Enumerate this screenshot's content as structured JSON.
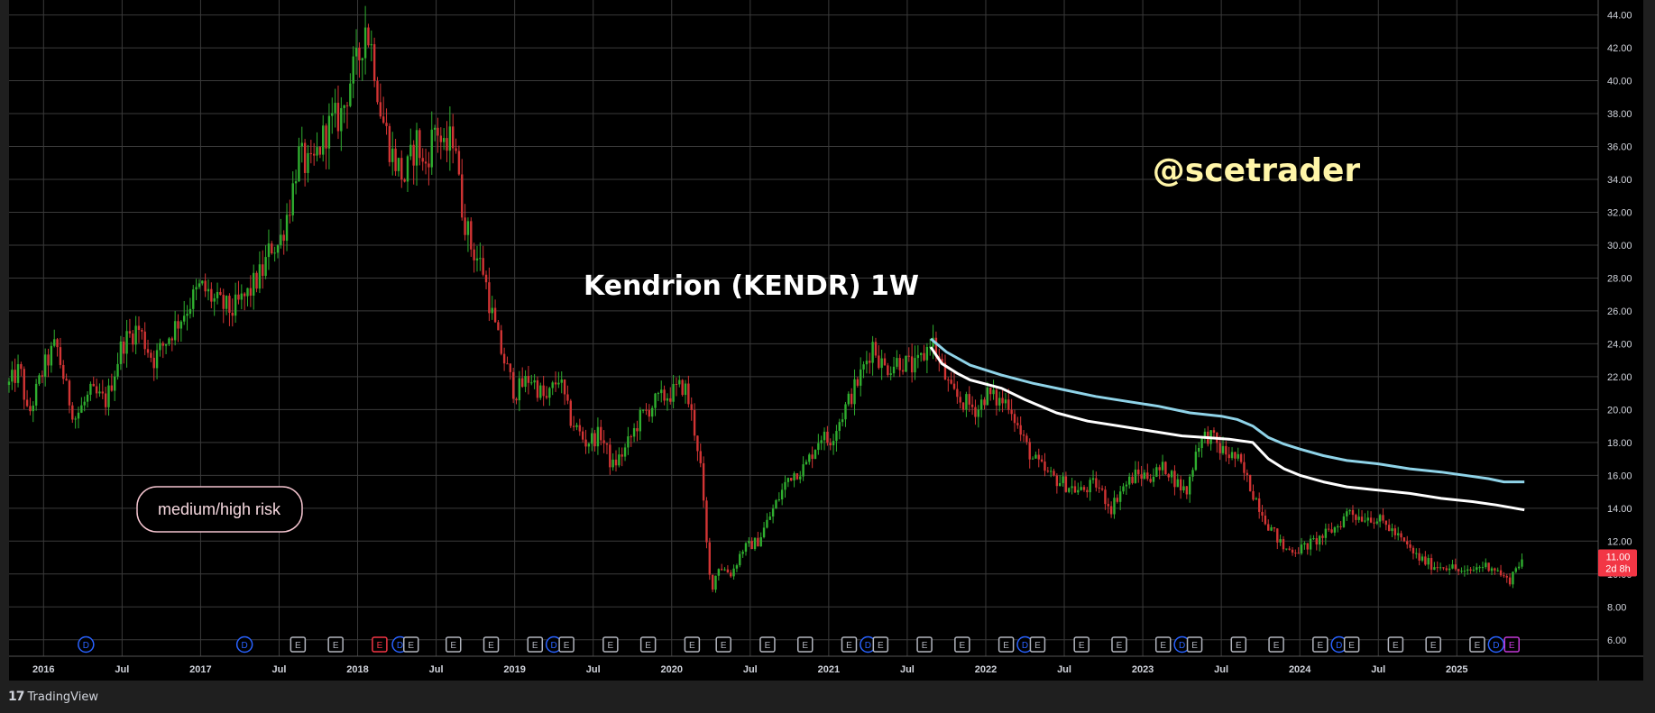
{
  "chart_data": {
    "type": "candlestick",
    "title": "Kendrion (KENDR) 1W",
    "watermark": "@scetrader",
    "annotation": "medium/high risk",
    "ylim": [
      5.0,
      44.8
    ],
    "xlim": [
      2015.78,
      2025.9
    ],
    "y_ticks": [
      "6.00",
      "8.00",
      "10.00",
      "12.00",
      "14.00",
      "16.00",
      "18.00",
      "20.00",
      "22.00",
      "24.00",
      "26.00",
      "28.00",
      "30.00",
      "32.00",
      "34.00",
      "36.00",
      "38.00",
      "40.00",
      "42.00",
      "44.00"
    ],
    "x_ticks": [
      {
        "label": "2016",
        "t": 2016.0
      },
      {
        "label": "Jul",
        "t": 2016.5
      },
      {
        "label": "2017",
        "t": 2017.0
      },
      {
        "label": "Jul",
        "t": 2017.5
      },
      {
        "label": "2018",
        "t": 2018.0
      },
      {
        "label": "Jul",
        "t": 2018.5
      },
      {
        "label": "2019",
        "t": 2019.0
      },
      {
        "label": "Jul",
        "t": 2019.5
      },
      {
        "label": "2020",
        "t": 2020.0
      },
      {
        "label": "Jul",
        "t": 2020.5
      },
      {
        "label": "2021",
        "t": 2021.0
      },
      {
        "label": "Jul",
        "t": 2021.5
      },
      {
        "label": "2022",
        "t": 2022.0
      },
      {
        "label": "Jul",
        "t": 2022.5
      },
      {
        "label": "2023",
        "t": 2023.0
      },
      {
        "label": "Jul",
        "t": 2023.5
      },
      {
        "label": "2024",
        "t": 2024.0
      },
      {
        "label": "Jul",
        "t": 2024.5
      },
      {
        "label": "2025",
        "t": 2025.0
      }
    ],
    "price_path": [
      [
        2015.78,
        21.5
      ],
      [
        2015.85,
        22.5
      ],
      [
        2015.9,
        19.5
      ],
      [
        2016.0,
        22.5
      ],
      [
        2016.08,
        24.0
      ],
      [
        2016.15,
        21.0
      ],
      [
        2016.2,
        19.5
      ],
      [
        2016.3,
        21.0
      ],
      [
        2016.4,
        20.5
      ],
      [
        2016.5,
        24.0
      ],
      [
        2016.6,
        25.0
      ],
      [
        2016.7,
        23.0
      ],
      [
        2016.8,
        24.5
      ],
      [
        2016.9,
        26.0
      ],
      [
        2017.0,
        27.5
      ],
      [
        2017.1,
        26.5
      ],
      [
        2017.2,
        26.0
      ],
      [
        2017.3,
        27.0
      ],
      [
        2017.4,
        28.5
      ],
      [
        2017.45,
        30.0
      ],
      [
        2017.5,
        30.0
      ],
      [
        2017.58,
        33.0
      ],
      [
        2017.62,
        35.5
      ],
      [
        2017.7,
        34.5
      ],
      [
        2017.8,
        37.0
      ],
      [
        2017.9,
        38.0
      ],
      [
        2017.95,
        40.0
      ],
      [
        2018.0,
        41.0
      ],
      [
        2018.05,
        43.5
      ],
      [
        2018.1,
        41.5
      ],
      [
        2018.15,
        38.0
      ],
      [
        2018.22,
        35.5
      ],
      [
        2018.3,
        34.0
      ],
      [
        2018.38,
        36.5
      ],
      [
        2018.42,
        34.5
      ],
      [
        2018.5,
        37.5
      ],
      [
        2018.55,
        35.5
      ],
      [
        2018.62,
        37.0
      ],
      [
        2018.65,
        33.0
      ],
      [
        2018.72,
        30.0
      ],
      [
        2018.8,
        28.5
      ],
      [
        2018.85,
        26.0
      ],
      [
        2018.9,
        24.0
      ],
      [
        2018.95,
        22.5
      ],
      [
        2019.0,
        21.0
      ],
      [
        2019.1,
        22.0
      ],
      [
        2019.2,
        20.5
      ],
      [
        2019.28,
        22.0
      ],
      [
        2019.35,
        19.5
      ],
      [
        2019.45,
        18.0
      ],
      [
        2019.55,
        18.5
      ],
      [
        2019.62,
        16.5
      ],
      [
        2019.7,
        17.5
      ],
      [
        2019.8,
        19.5
      ],
      [
        2019.9,
        20.5
      ],
      [
        2020.0,
        21.0
      ],
      [
        2020.08,
        21.5
      ],
      [
        2020.12,
        20.0
      ],
      [
        2020.18,
        17.0
      ],
      [
        2020.22,
        12.0
      ],
      [
        2020.25,
        9.0
      ],
      [
        2020.3,
        10.5
      ],
      [
        2020.38,
        10.0
      ],
      [
        2020.45,
        11.5
      ],
      [
        2020.55,
        12.0
      ],
      [
        2020.65,
        14.0
      ],
      [
        2020.75,
        16.0
      ],
      [
        2020.85,
        16.5
      ],
      [
        2020.95,
        18.5
      ],
      [
        2021.0,
        18.0
      ],
      [
        2021.1,
        20.0
      ],
      [
        2021.2,
        22.0
      ],
      [
        2021.28,
        24.0
      ],
      [
        2021.35,
        22.5
      ],
      [
        2021.45,
        23.0
      ],
      [
        2021.55,
        22.5
      ],
      [
        2021.62,
        23.5
      ],
      [
        2021.65,
        24.5
      ],
      [
        2021.7,
        23.0
      ],
      [
        2021.78,
        21.0
      ],
      [
        2021.85,
        20.5
      ],
      [
        2021.95,
        20.0
      ],
      [
        2022.0,
        21.0
      ],
      [
        2022.08,
        20.5
      ],
      [
        2022.15,
        20.5
      ],
      [
        2022.22,
        18.5
      ],
      [
        2022.3,
        17.0
      ],
      [
        2022.4,
        16.0
      ],
      [
        2022.5,
        15.5
      ],
      [
        2022.6,
        15.0
      ],
      [
        2022.7,
        15.5
      ],
      [
        2022.8,
        14.0
      ],
      [
        2022.85,
        15.0
      ],
      [
        2022.95,
        16.0
      ],
      [
        2023.05,
        16.0
      ],
      [
        2023.15,
        16.5
      ],
      [
        2023.22,
        15.5
      ],
      [
        2023.28,
        15.0
      ],
      [
        2023.35,
        18.0
      ],
      [
        2023.42,
        18.5
      ],
      [
        2023.5,
        17.5
      ],
      [
        2023.6,
        17.0
      ],
      [
        2023.7,
        15.0
      ],
      [
        2023.8,
        13.0
      ],
      [
        2023.9,
        11.5
      ],
      [
        2024.0,
        11.5
      ],
      [
        2024.1,
        12.0
      ],
      [
        2024.18,
        12.5
      ],
      [
        2024.25,
        13.0
      ],
      [
        2024.32,
        14.0
      ],
      [
        2024.36,
        13.5
      ],
      [
        2024.45,
        13.5
      ],
      [
        2024.55,
        13.0
      ],
      [
        2024.65,
        12.0
      ],
      [
        2024.75,
        11.0
      ],
      [
        2024.85,
        10.5
      ],
      [
        2024.95,
        10.5
      ],
      [
        2025.05,
        10.0
      ],
      [
        2025.15,
        10.5
      ],
      [
        2025.22,
        10.5
      ],
      [
        2025.28,
        10.0
      ],
      [
        2025.33,
        9.5
      ],
      [
        2025.38,
        10.5
      ],
      [
        2025.43,
        11.0
      ]
    ],
    "series": [
      {
        "name": "",
        "color": "#8fd3e8",
        "points": [
          [
            2021.65,
            24.3
          ],
          [
            2021.75,
            23.5
          ],
          [
            2021.9,
            22.7
          ],
          [
            2022.1,
            22.1
          ],
          [
            2022.3,
            21.6
          ],
          [
            2022.5,
            21.2
          ],
          [
            2022.7,
            20.8
          ],
          [
            2022.9,
            20.5
          ],
          [
            2023.1,
            20.2
          ],
          [
            2023.3,
            19.8
          ],
          [
            2023.5,
            19.6
          ],
          [
            2023.6,
            19.4
          ],
          [
            2023.7,
            19.0
          ],
          [
            2023.8,
            18.3
          ],
          [
            2023.9,
            17.9
          ],
          [
            2024.0,
            17.6
          ],
          [
            2024.15,
            17.2
          ],
          [
            2024.3,
            16.9
          ],
          [
            2024.5,
            16.7
          ],
          [
            2024.7,
            16.4
          ],
          [
            2024.9,
            16.2
          ],
          [
            2025.05,
            16.0
          ],
          [
            2025.2,
            15.8
          ],
          [
            2025.3,
            15.6
          ],
          [
            2025.43,
            15.6
          ]
        ]
      },
      {
        "name": "",
        "color": "#ffffff",
        "points": [
          [
            2021.65,
            23.8
          ],
          [
            2021.72,
            22.8
          ],
          [
            2021.82,
            22.2
          ],
          [
            2021.9,
            21.8
          ],
          [
            2022.1,
            21.3
          ],
          [
            2022.25,
            20.6
          ],
          [
            2022.45,
            19.8
          ],
          [
            2022.65,
            19.3
          ],
          [
            2022.85,
            19.0
          ],
          [
            2023.05,
            18.7
          ],
          [
            2023.25,
            18.4
          ],
          [
            2023.4,
            18.3
          ],
          [
            2023.55,
            18.2
          ],
          [
            2023.7,
            18.0
          ],
          [
            2023.8,
            17.0
          ],
          [
            2023.9,
            16.4
          ],
          [
            2024.0,
            16.0
          ],
          [
            2024.15,
            15.6
          ],
          [
            2024.3,
            15.3
          ],
          [
            2024.5,
            15.1
          ],
          [
            2024.7,
            14.9
          ],
          [
            2024.9,
            14.6
          ],
          [
            2025.1,
            14.4
          ],
          [
            2025.25,
            14.2
          ],
          [
            2025.43,
            13.9
          ]
        ]
      }
    ],
    "last_price": {
      "value": 11.0,
      "label": "11.00",
      "countdown": "2d 8h",
      "color": "#f23645"
    },
    "events": [
      {
        "t": 2016.27,
        "label": "D",
        "kind": "dividend"
      },
      {
        "t": 2017.28,
        "label": "D",
        "kind": "dividend"
      },
      {
        "t": 2017.62,
        "label": "E",
        "kind": "earnings"
      },
      {
        "t": 2017.86,
        "label": "E",
        "kind": "earnings"
      },
      {
        "t": 2018.14,
        "label": "E",
        "kind": "earnings-down"
      },
      {
        "t": 2018.27,
        "label": "D",
        "kind": "dividend"
      },
      {
        "t": 2018.34,
        "label": "E",
        "kind": "earnings"
      },
      {
        "t": 2018.61,
        "label": "E",
        "kind": "earnings"
      },
      {
        "t": 2018.85,
        "label": "E",
        "kind": "earnings"
      },
      {
        "t": 2019.13,
        "label": "E",
        "kind": "earnings"
      },
      {
        "t": 2019.25,
        "label": "D",
        "kind": "dividend"
      },
      {
        "t": 2019.33,
        "label": "E",
        "kind": "earnings"
      },
      {
        "t": 2019.61,
        "label": "E",
        "kind": "earnings"
      },
      {
        "t": 2019.85,
        "label": "E",
        "kind": "earnings"
      },
      {
        "t": 2020.13,
        "label": "E",
        "kind": "earnings"
      },
      {
        "t": 2020.33,
        "label": "E",
        "kind": "earnings"
      },
      {
        "t": 2020.61,
        "label": "E",
        "kind": "earnings"
      },
      {
        "t": 2020.85,
        "label": "E",
        "kind": "earnings"
      },
      {
        "t": 2021.13,
        "label": "E",
        "kind": "earnings"
      },
      {
        "t": 2021.25,
        "label": "D",
        "kind": "dividend"
      },
      {
        "t": 2021.33,
        "label": "E",
        "kind": "earnings"
      },
      {
        "t": 2021.61,
        "label": "E",
        "kind": "earnings"
      },
      {
        "t": 2021.85,
        "label": "E",
        "kind": "earnings"
      },
      {
        "t": 2022.13,
        "label": "E",
        "kind": "earnings"
      },
      {
        "t": 2022.25,
        "label": "D",
        "kind": "dividend"
      },
      {
        "t": 2022.33,
        "label": "E",
        "kind": "earnings"
      },
      {
        "t": 2022.61,
        "label": "E",
        "kind": "earnings"
      },
      {
        "t": 2022.85,
        "label": "E",
        "kind": "earnings"
      },
      {
        "t": 2023.13,
        "label": "E",
        "kind": "earnings"
      },
      {
        "t": 2023.25,
        "label": "D",
        "kind": "dividend"
      },
      {
        "t": 2023.33,
        "label": "E",
        "kind": "earnings"
      },
      {
        "t": 2023.61,
        "label": "E",
        "kind": "earnings"
      },
      {
        "t": 2023.85,
        "label": "E",
        "kind": "earnings"
      },
      {
        "t": 2024.13,
        "label": "E",
        "kind": "earnings"
      },
      {
        "t": 2024.25,
        "label": "D",
        "kind": "dividend"
      },
      {
        "t": 2024.33,
        "label": "E",
        "kind": "earnings"
      },
      {
        "t": 2024.61,
        "label": "E",
        "kind": "earnings"
      },
      {
        "t": 2024.85,
        "label": "E",
        "kind": "earnings"
      },
      {
        "t": 2025.13,
        "label": "E",
        "kind": "earnings"
      },
      {
        "t": 2025.25,
        "label": "D",
        "kind": "dividend"
      },
      {
        "t": 2025.35,
        "label": "E",
        "kind": "earnings-upcoming"
      }
    ]
  },
  "footer": {
    "brand": "TradingView",
    "brand_mark": "17"
  },
  "colors": {
    "background": "#000000",
    "grid": "#3a3a3a",
    "up": "#2fae2f",
    "down": "#d23434",
    "axis_text": "#d1d4dc",
    "title": "#ffffff",
    "watermark": "#fff5a8",
    "annotation_border": "#f4c4cf",
    "dividend": "#2962ff",
    "earnings": "#b2b5be",
    "earnings_down": "#f23645",
    "earnings_upcoming": "#c239d6"
  }
}
